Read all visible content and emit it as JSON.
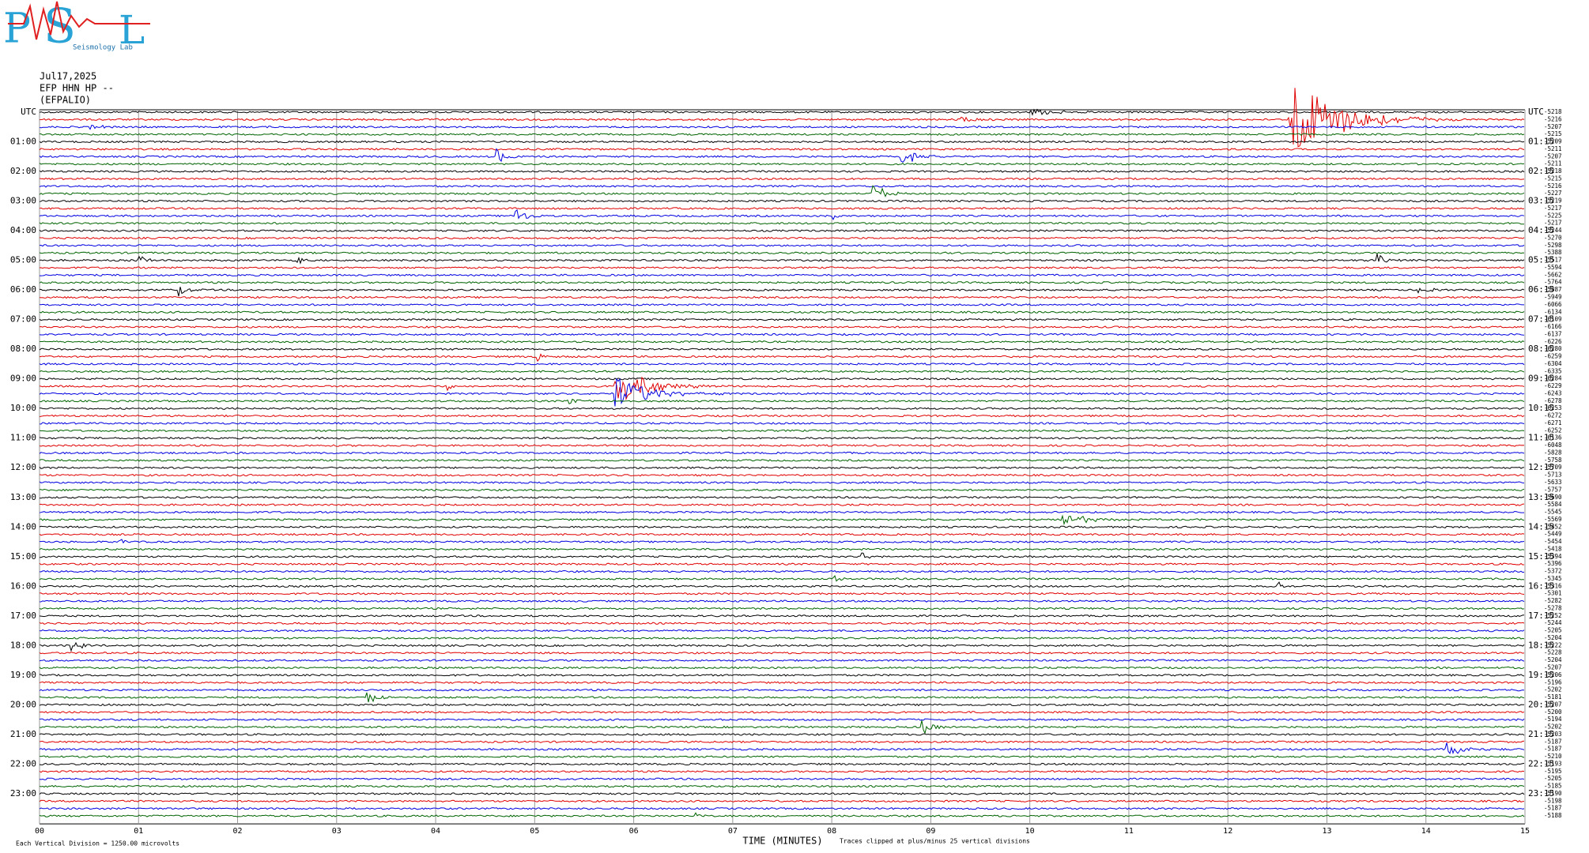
{
  "header": {
    "logo": {
      "p": "P",
      "s": "S",
      "l": "L",
      "tag": "Seismology Lab"
    },
    "date": "Jul17,2025",
    "station": "EFP HHN HP --",
    "site": "(EFPALIO)"
  },
  "left_labels": [
    "UTC",
    "01:00",
    "02:00",
    "03:00",
    "04:00",
    "05:00",
    "06:00",
    "07:00",
    "08:00",
    "09:00",
    "10:00",
    "11:00",
    "12:00",
    "13:00",
    "14:00",
    "15:00",
    "16:00",
    "17:00",
    "18:00",
    "19:00",
    "20:00",
    "21:00",
    "22:00",
    "23:00"
  ],
  "right_labels": [
    "UTC",
    "01:15",
    "02:15",
    "03:15",
    "04:15",
    "05:15",
    "06:15",
    "07:15",
    "08:15",
    "09:15",
    "10:15",
    "11:15",
    "12:15",
    "13:15",
    "14:15",
    "15:15",
    "16:15",
    "17:15",
    "18:15",
    "19:15",
    "20:15",
    "21:15",
    "22:15",
    "23:15"
  ],
  "trace_offsets": [
    -5218,
    -5216,
    -5207,
    -5215,
    -5209,
    -5211,
    -5207,
    -5211,
    -5218,
    -5215,
    -5216,
    -5227,
    -5219,
    -5217,
    -5225,
    -5217,
    -5244,
    -5270,
    -5298,
    -5388,
    -5517,
    -5594,
    -5662,
    -5764,
    -5887,
    -5949,
    -6066,
    -6134,
    -6109,
    -6166,
    -6137,
    -6226,
    -6280,
    -6259,
    -6304,
    -6335,
    -6284,
    -6229,
    -6243,
    -6278,
    -6253,
    -6272,
    -6271,
    -6252,
    -6136,
    -6048,
    -5828,
    -5758,
    -5709,
    -5713,
    -5633,
    -5757,
    -5690,
    -5584,
    -5545,
    -5569,
    -5452,
    -5449,
    -5454,
    -5418,
    -5394,
    -5396,
    -5372,
    -5345,
    -5316,
    -5301,
    -5282,
    -5278,
    -5252,
    -5244,
    -5205,
    -5204,
    -5222,
    -5228,
    -5204,
    -5207,
    -5206,
    -5196,
    -5202,
    -5181,
    -5207,
    -5200,
    -5194,
    -5202,
    -5203,
    -5187,
    -5187,
    -5210,
    -5193,
    -5195,
    -5205,
    -5185,
    -5190,
    -5198,
    -5187,
    -5188
  ],
  "x_ticks": [
    "00",
    "01",
    "02",
    "03",
    "04",
    "05",
    "06",
    "07",
    "08",
    "09",
    "10",
    "11",
    "12",
    "13",
    "14",
    "15"
  ],
  "x_axis_title": "TIME (MINUTES)",
  "footer_left": "Each Vertical Division = 1250.00 microvolts",
  "footer_right": "Traces clipped at plus/minus 25 vertical divisions"
}
